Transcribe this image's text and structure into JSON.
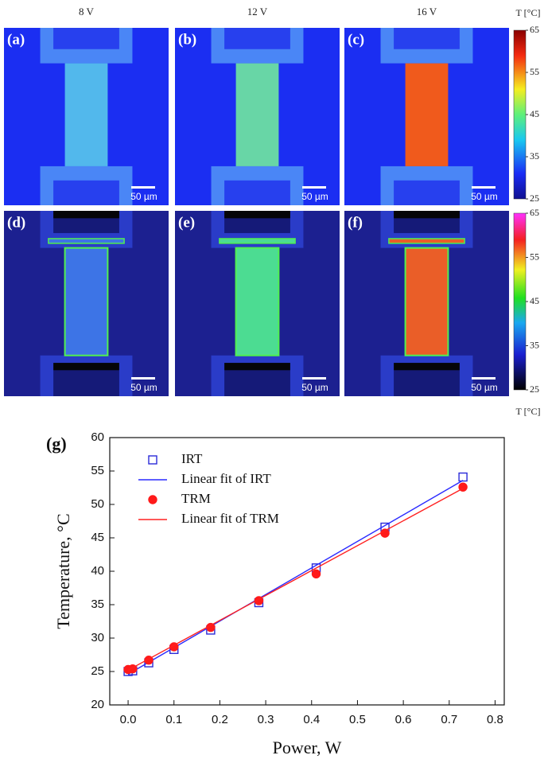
{
  "figure": {
    "columns": [
      "8 V",
      "12 V",
      "16 V"
    ],
    "panels": [
      {
        "label": "(a)",
        "scale_bar": "50 µm"
      },
      {
        "label": "(b)",
        "scale_bar": "50 µm"
      },
      {
        "label": "(c)",
        "scale_bar": "50 µm"
      },
      {
        "label": "(d)",
        "scale_bar": "50 µm"
      },
      {
        "label": "(e)",
        "scale_bar": "50 µm"
      },
      {
        "label": "(f)",
        "scale_bar": "50 µm"
      }
    ],
    "colorbars": [
      {
        "title": "T [°C]",
        "range": [
          25,
          65
        ],
        "ticks": [
          65,
          55,
          45,
          35,
          25
        ]
      },
      {
        "title": "T [°C]",
        "range": [
          25,
          65
        ],
        "ticks": [
          65,
          55,
          45,
          35,
          25
        ]
      }
    ]
  },
  "chart_data": {
    "type": "scatter",
    "panel_label": "(g)",
    "x_label": "Power, W",
    "y_label": "Temperature, °C",
    "xlim": [
      -0.04,
      0.82
    ],
    "ylim": [
      20,
      60
    ],
    "xticks": [
      {
        "value": 0,
        "label": "0.0"
      },
      0.1,
      0.2,
      0.3,
      0.4,
      0.5,
      0.6,
      0.7,
      0.8
    ],
    "yticks": [
      20,
      25,
      30,
      35,
      40,
      45,
      50,
      55,
      60
    ],
    "series": [
      {
        "name": "IRT",
        "kind": "markers",
        "marker": "square",
        "filled": false,
        "color": "#2a2ad8",
        "x": [
          0,
          0.01,
          0.045,
          0.1,
          0.18,
          0.285,
          0.41,
          0.56,
          0.73
        ],
        "values": [
          25.0,
          25.1,
          26.3,
          28.3,
          31.2,
          35.3,
          40.5,
          46.6,
          54.1
        ]
      },
      {
        "name": "Linear fit of IRT",
        "kind": "line",
        "color": "#2a2aff",
        "x": [
          0,
          0.73
        ],
        "values": [
          24.6,
          53.6
        ]
      },
      {
        "name": "TRM",
        "kind": "markers",
        "marker": "circle",
        "filled": true,
        "color": "#ff1a1a",
        "x": [
          0,
          0.01,
          0.045,
          0.1,
          0.18,
          0.285,
          0.41,
          0.56,
          0.73
        ],
        "values": [
          25.3,
          25.4,
          26.7,
          28.7,
          31.6,
          35.6,
          39.6,
          45.7,
          52.6
        ]
      },
      {
        "name": "Linear fit of TRM",
        "kind": "line",
        "color": "#ff2020",
        "x": [
          0,
          0.73
        ],
        "values": [
          25.2,
          52.4
        ]
      }
    ]
  }
}
